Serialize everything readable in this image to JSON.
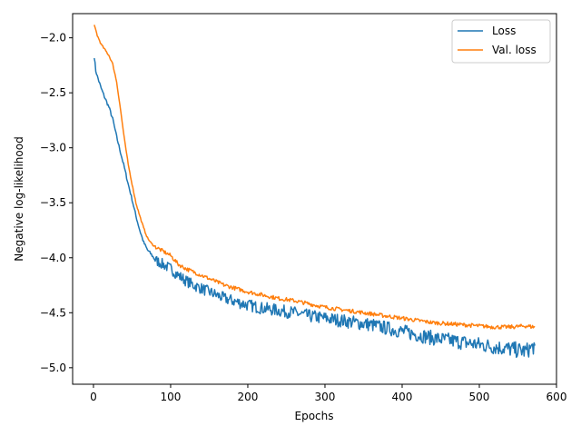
{
  "chart_data": {
    "type": "line",
    "xlabel": "Epochs",
    "ylabel": "Negative log-likelihood",
    "xlim": [
      -27,
      600
    ],
    "ylim": [
      -5.15,
      -1.78
    ],
    "xticks": [
      0,
      100,
      200,
      300,
      400,
      500,
      600
    ],
    "yticks": [
      -5.0,
      -4.5,
      -4.0,
      -3.5,
      -3.0,
      -2.5,
      -2.0
    ],
    "ytick_labels": [
      "−5.0",
      "−4.5",
      "−4.0",
      "−3.5",
      "−3.0",
      "−2.5",
      "−2.0"
    ],
    "grid": false,
    "legend_position": "top-right",
    "series": [
      {
        "name": "Loss",
        "color": "#1f77b4",
        "points": [
          [
            1,
            -2.17
          ],
          [
            3,
            -2.3
          ],
          [
            5,
            -2.35
          ],
          [
            10,
            -2.46
          ],
          [
            15,
            -2.55
          ],
          [
            20,
            -2.63
          ],
          [
            25,
            -2.74
          ],
          [
            30,
            -2.9
          ],
          [
            35,
            -3.04
          ],
          [
            40,
            -3.18
          ],
          [
            45,
            -3.33
          ],
          [
            50,
            -3.47
          ],
          [
            55,
            -3.62
          ],
          [
            60,
            -3.75
          ],
          [
            65,
            -3.86
          ],
          [
            70,
            -3.93
          ],
          [
            75,
            -3.97
          ],
          [
            80,
            -4.02
          ],
          [
            90,
            -4.06
          ],
          [
            100,
            -4.1
          ],
          [
            110,
            -4.16
          ],
          [
            120,
            -4.21
          ],
          [
            130,
            -4.25
          ],
          [
            140,
            -4.28
          ],
          [
            150,
            -4.31
          ],
          [
            160,
            -4.34
          ],
          [
            170,
            -4.37
          ],
          [
            180,
            -4.39
          ],
          [
            190,
            -4.41
          ],
          [
            200,
            -4.43
          ],
          [
            220,
            -4.46
          ],
          [
            240,
            -4.48
          ],
          [
            260,
            -4.5
          ],
          [
            280,
            -4.53
          ],
          [
            300,
            -4.55
          ],
          [
            320,
            -4.57
          ],
          [
            340,
            -4.59
          ],
          [
            360,
            -4.61
          ],
          [
            380,
            -4.64
          ],
          [
            400,
            -4.67
          ],
          [
            420,
            -4.7
          ],
          [
            440,
            -4.73
          ],
          [
            460,
            -4.75
          ],
          [
            480,
            -4.77
          ],
          [
            500,
            -4.79
          ],
          [
            520,
            -4.81
          ],
          [
            540,
            -4.83
          ],
          [
            560,
            -4.85
          ],
          [
            572,
            -4.8
          ]
        ]
      },
      {
        "name": "Val. loss",
        "color": "#ff7f0e",
        "points": [
          [
            1,
            -1.89
          ],
          [
            3,
            -1.93
          ],
          [
            5,
            -1.98
          ],
          [
            10,
            -2.06
          ],
          [
            15,
            -2.11
          ],
          [
            20,
            -2.16
          ],
          [
            25,
            -2.24
          ],
          [
            30,
            -2.4
          ],
          [
            35,
            -2.65
          ],
          [
            40,
            -2.92
          ],
          [
            45,
            -3.15
          ],
          [
            50,
            -3.33
          ],
          [
            55,
            -3.5
          ],
          [
            60,
            -3.62
          ],
          [
            65,
            -3.73
          ],
          [
            70,
            -3.82
          ],
          [
            75,
            -3.87
          ],
          [
            80,
            -3.9
          ],
          [
            90,
            -3.94
          ],
          [
            100,
            -3.98
          ],
          [
            110,
            -4.06
          ],
          [
            120,
            -4.1
          ],
          [
            130,
            -4.13
          ],
          [
            140,
            -4.16
          ],
          [
            150,
            -4.19
          ],
          [
            160,
            -4.22
          ],
          [
            170,
            -4.25
          ],
          [
            180,
            -4.27
          ],
          [
            190,
            -4.29
          ],
          [
            200,
            -4.31
          ],
          [
            220,
            -4.34
          ],
          [
            240,
            -4.37
          ],
          [
            260,
            -4.39
          ],
          [
            280,
            -4.42
          ],
          [
            300,
            -4.45
          ],
          [
            320,
            -4.47
          ],
          [
            340,
            -4.49
          ],
          [
            360,
            -4.51
          ],
          [
            380,
            -4.53
          ],
          [
            400,
            -4.55
          ],
          [
            420,
            -4.57
          ],
          [
            440,
            -4.59
          ],
          [
            460,
            -4.6
          ],
          [
            480,
            -4.61
          ],
          [
            500,
            -4.62
          ],
          [
            520,
            -4.63
          ],
          [
            540,
            -4.63
          ],
          [
            560,
            -4.62
          ],
          [
            572,
            -4.63
          ]
        ]
      }
    ]
  }
}
